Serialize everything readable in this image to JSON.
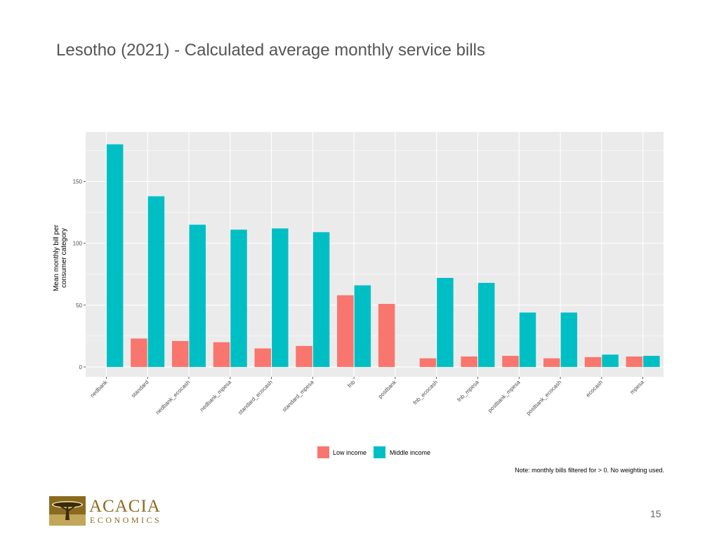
{
  "slide": {
    "title": "Lesotho (2021) - Calculated average monthly service bills",
    "page_number": "15"
  },
  "logo": {
    "name": "ACACIA",
    "subtitle": "ECONOMICS"
  },
  "colors": {
    "low_income": "#F8766D",
    "middle_income": "#00BFC4",
    "panel": "#EBEBEB",
    "grid": "#FFFFFF",
    "logo": "#8A6A1E"
  },
  "chart_data": {
    "type": "bar",
    "title": "",
    "xlabel": "",
    "ylabel": "Mean monthly bill per consumer category",
    "ylabel_lines": [
      "Mean monthly bill per",
      "consumer category"
    ],
    "ylim": [
      -8,
      190
    ],
    "yticks": [
      0,
      50,
      100,
      150
    ],
    "grid": true,
    "legend_position": "bottom",
    "categories": [
      "nedbank",
      "standard",
      "nedbank_ecocash",
      "nedbank_mpesa",
      "standard_ecocash",
      "standard_mpesa",
      "fnb",
      "postbank",
      "fnb_ecocash",
      "fnb_mpesa",
      "postbank_mpesa",
      "postbank_ecocash",
      "ecocash",
      "mpesa"
    ],
    "series": [
      {
        "name": "Low income",
        "color": "#F8766D",
        "values": [
          null,
          23,
          21,
          20,
          15,
          17,
          58,
          51,
          7,
          8.5,
          9,
          7,
          8,
          8.5
        ]
      },
      {
        "name": "Middle income",
        "color": "#00BFC4",
        "values": [
          180,
          138,
          115,
          111,
          112,
          109,
          66,
          null,
          72,
          68,
          44,
          44,
          10,
          9
        ]
      }
    ],
    "note": "Note: monthly bills filtered for > 0. No weighting used."
  }
}
